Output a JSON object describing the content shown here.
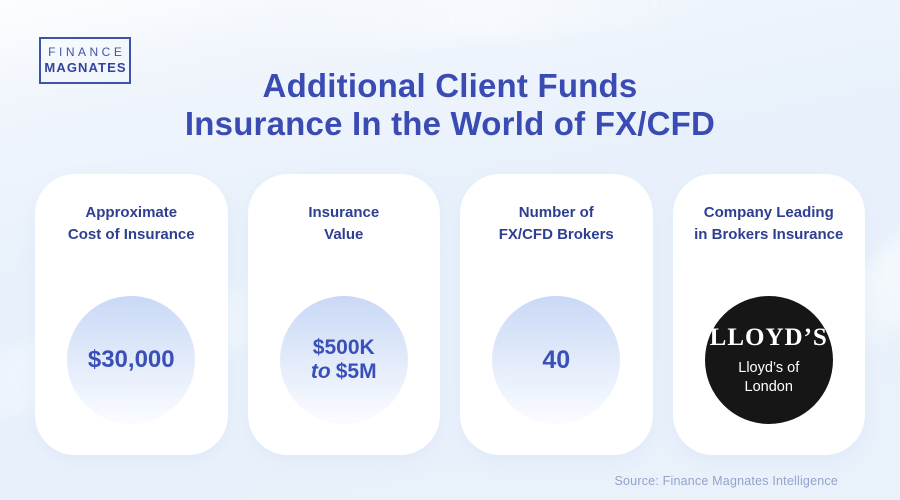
{
  "brand": {
    "line1": "FINANCE",
    "line2": "MAGNATES"
  },
  "title": {
    "line1": "Additional Client Funds",
    "line2": "Insurance In the World of FX/CFD"
  },
  "cards": [
    {
      "label_line1": "Approximate",
      "label_line2": "Cost of Insurance",
      "value": "$30,000"
    },
    {
      "label_line1": "Insurance",
      "label_line2": "Value",
      "value_line1": "$500K",
      "value_italic": "to",
      "value_rest": "$5M"
    },
    {
      "label_line1": "Number of",
      "label_line2": "FX/CFD Brokers",
      "value": "40"
    },
    {
      "label_line1": "Company Leading",
      "label_line2": "in Brokers Insurance",
      "logo_text": "LLOYD’S",
      "sub_line1": "Lloyd’s of",
      "sub_line2": "London"
    }
  ],
  "footer": {
    "source": "Source: Finance Magnates Intelligence"
  },
  "colors": {
    "background": "#e9f1fb",
    "card": "#ffffff",
    "title_blue": "#3a4cb4",
    "label_navy": "#2e3f92",
    "value_blue": "#3a50b8",
    "circle_gradient_top": "#c9d8f6",
    "circle_gradient_bottom": "#f9fbff",
    "lloyds_circle": "#161616",
    "logo_border": "#3d52aa",
    "source_text": "#93a3cc"
  },
  "chart_data": {
    "type": "table",
    "title": "Additional Client Funds Insurance In the World of FX/CFD",
    "categories": [
      "Approximate Cost of Insurance",
      "Insurance Value",
      "Number of FX/CFD Brokers",
      "Company Leading in Brokers Insurance"
    ],
    "values": [
      "$30,000",
      "$500K to $5M",
      "40",
      "Lloyd's of London"
    ],
    "source": "Source: Finance Magnates Intelligence",
    "legend_position": "none",
    "grid": false
  }
}
